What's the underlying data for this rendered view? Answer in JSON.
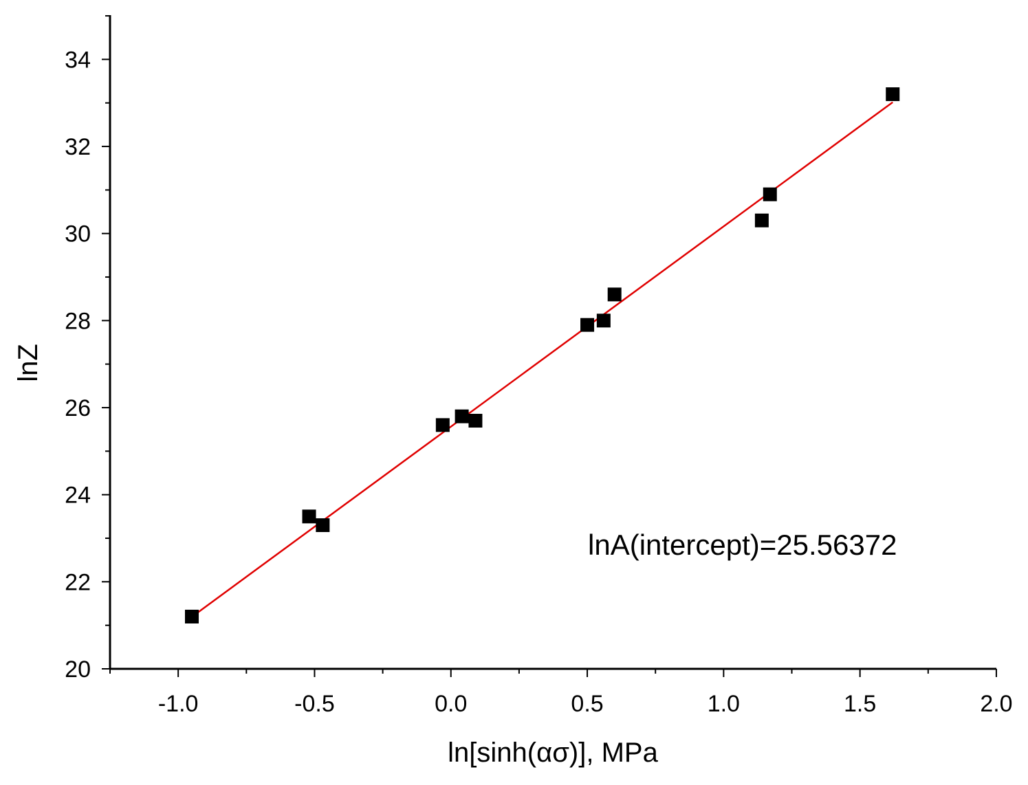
{
  "chart_data": {
    "type": "scatter",
    "title": "",
    "xlabel": "ln[sinh(ασ)], MPa",
    "ylabel": "lnZ",
    "xlim": [
      -1.25,
      2.0
    ],
    "ylim": [
      20,
      35
    ],
    "x_ticks": [
      -1.0,
      -0.5,
      0.0,
      0.5,
      1.0,
      1.5,
      2.0
    ],
    "x_tick_labels": [
      "-1.0",
      "-0.5",
      "0.0",
      "0.5",
      "1.0",
      "1.5",
      "2.0"
    ],
    "y_ticks": [
      20,
      22,
      24,
      26,
      28,
      30,
      32,
      34
    ],
    "y_tick_labels": [
      "20",
      "22",
      "24",
      "26",
      "28",
      "30",
      "32",
      "34"
    ],
    "grid": false,
    "legend": "none",
    "series": [
      {
        "marker": "square",
        "color": "#000000",
        "points": [
          {
            "x": -0.95,
            "y": 21.2
          },
          {
            "x": -0.52,
            "y": 23.5
          },
          {
            "x": -0.47,
            "y": 23.3
          },
          {
            "x": -0.03,
            "y": 25.6
          },
          {
            "x": 0.04,
            "y": 25.8
          },
          {
            "x": 0.09,
            "y": 25.7
          },
          {
            "x": 0.5,
            "y": 27.9
          },
          {
            "x": 0.56,
            "y": 28.0
          },
          {
            "x": 0.6,
            "y": 28.6
          },
          {
            "x": 1.14,
            "y": 30.3
          },
          {
            "x": 1.17,
            "y": 30.9
          },
          {
            "x": 1.62,
            "y": 33.2
          }
        ]
      }
    ],
    "fit_line": {
      "color": "#e00000",
      "x_start": -0.94,
      "x_end": 1.62,
      "intercept": 25.56372,
      "slope": 4.6
    },
    "annotation": "lnA(intercept)=25.56372"
  }
}
